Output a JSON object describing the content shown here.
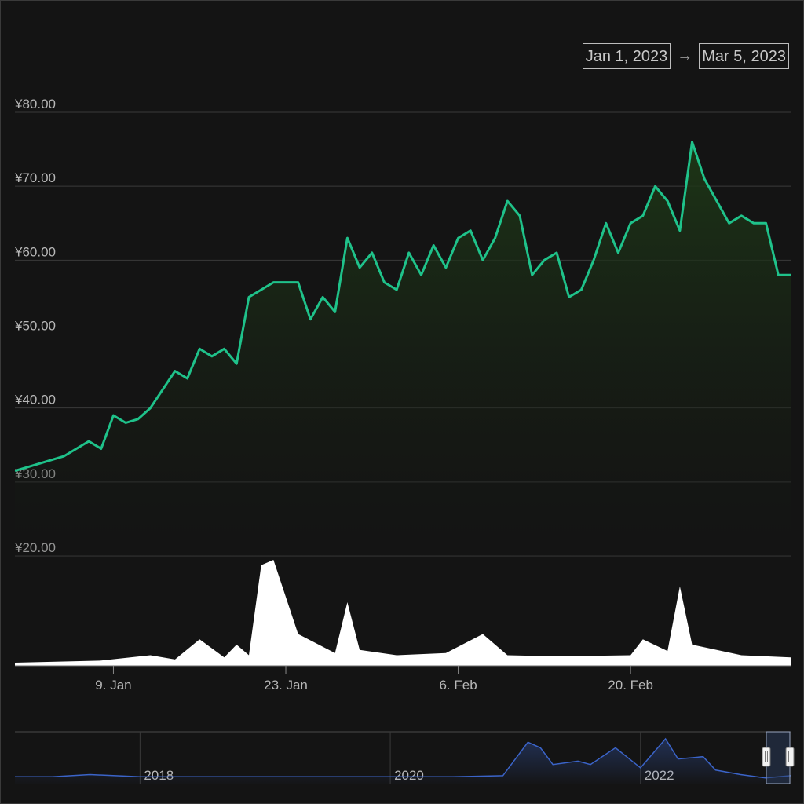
{
  "range_selector": {
    "from": "Jan 1, 2023",
    "arrow": "→",
    "to": "Mar 5, 2023"
  },
  "colors": {
    "background": "#141414",
    "price_line": "#1fc28a",
    "price_fill_top": "#1e3a17",
    "volume_fill": "#ffffff",
    "grid": "#3a3a3a",
    "navigator_line": "#3b64c9",
    "navigator_fill": "#1a2236"
  },
  "chart_data": [
    {
      "type": "line",
      "title": "",
      "y_currency_prefix": "¥",
      "ylim": [
        20,
        80
      ],
      "y_ticks": [
        "¥80.00",
        "¥70.00",
        "¥60.00",
        "¥50.00",
        "¥40.00",
        "¥30.00",
        "¥20.00"
      ],
      "x_ticks": [
        "9. Jan",
        "23. Jan",
        "6. Feb",
        "20. Feb"
      ],
      "x_range": [
        "2023-01-01",
        "2023-03-05"
      ],
      "grid": true,
      "area_fill": true,
      "series": [
        {
          "x": [
            "2023-01-01",
            "2023-01-03",
            "2023-01-05",
            "2023-01-07",
            "2023-01-08",
            "2023-01-09",
            "2023-01-10",
            "2023-01-11",
            "2023-01-12",
            "2023-01-14",
            "2023-01-15",
            "2023-01-16",
            "2023-01-17",
            "2023-01-18",
            "2023-01-19",
            "2023-01-20",
            "2023-01-21",
            "2023-01-22",
            "2023-01-23",
            "2023-01-24",
            "2023-01-25",
            "2023-01-26",
            "2023-01-27",
            "2023-01-28",
            "2023-01-29",
            "2023-01-30",
            "2023-01-31",
            "2023-02-01",
            "2023-02-02",
            "2023-02-03",
            "2023-02-04",
            "2023-02-05",
            "2023-02-06",
            "2023-02-07",
            "2023-02-08",
            "2023-02-09",
            "2023-02-10",
            "2023-02-11",
            "2023-02-12",
            "2023-02-13",
            "2023-02-14",
            "2023-02-15",
            "2023-02-16",
            "2023-02-17",
            "2023-02-18",
            "2023-02-19",
            "2023-02-20",
            "2023-02-21",
            "2023-02-22",
            "2023-02-23",
            "2023-02-24",
            "2023-02-25",
            "2023-02-26",
            "2023-02-27",
            "2023-02-28",
            "2023-03-01",
            "2023-03-02",
            "2023-03-03",
            "2023-03-04",
            "2023-03-05"
          ],
          "values": [
            31.5,
            32.5,
            33.5,
            35.5,
            34.5,
            39,
            38,
            38.5,
            40,
            45,
            44,
            48,
            47,
            48,
            46,
            55,
            56,
            57,
            57,
            57,
            52,
            55,
            53,
            63,
            59,
            61,
            57,
            56,
            61,
            58,
            62,
            59,
            63,
            64,
            60,
            63,
            68,
            66,
            58,
            60,
            61,
            55,
            56,
            60,
            65,
            61,
            65,
            66,
            70,
            68,
            64,
            76,
            71,
            68,
            65,
            66,
            65,
            65,
            58,
            58
          ]
        }
      ]
    },
    {
      "type": "area",
      "title": "",
      "description_series": "volume",
      "x": [
        "2023-01-01",
        "2023-01-08",
        "2023-01-12",
        "2023-01-14",
        "2023-01-16",
        "2023-01-18",
        "2023-01-19",
        "2023-01-20",
        "2023-01-21",
        "2023-01-22",
        "2023-01-24",
        "2023-01-27",
        "2023-01-28",
        "2023-01-29",
        "2023-02-01",
        "2023-02-05",
        "2023-02-08",
        "2023-02-10",
        "2023-02-14",
        "2023-02-20",
        "2023-02-21",
        "2023-02-23",
        "2023-02-24",
        "2023-02-25",
        "2023-03-01",
        "2023-03-05"
      ],
      "values": [
        3,
        5,
        10,
        6,
        25,
        8,
        20,
        10,
        95,
        100,
        30,
        12,
        60,
        15,
        10,
        12,
        30,
        10,
        9,
        10,
        25,
        14,
        75,
        20,
        10,
        8
      ]
    },
    {
      "type": "line",
      "title": "",
      "role": "navigator",
      "x_ticks": [
        "2018",
        "2020",
        "2022"
      ],
      "x": [
        2017.0,
        2017.3,
        2017.6,
        2018,
        2019,
        2019.5,
        2020,
        2020.5,
        2020.9,
        2021.1,
        2021.2,
        2021.3,
        2021.5,
        2021.6,
        2021.8,
        2022.0,
        2022.2,
        2022.3,
        2022.5,
        2022.6,
        2022.8,
        2023.0,
        2023.2
      ],
      "values": [
        4,
        4,
        6,
        4,
        4,
        4,
        4,
        4,
        5,
        35,
        30,
        15,
        18,
        15,
        30,
        12,
        38,
        20,
        22,
        10,
        6,
        3,
        5
      ]
    }
  ]
}
